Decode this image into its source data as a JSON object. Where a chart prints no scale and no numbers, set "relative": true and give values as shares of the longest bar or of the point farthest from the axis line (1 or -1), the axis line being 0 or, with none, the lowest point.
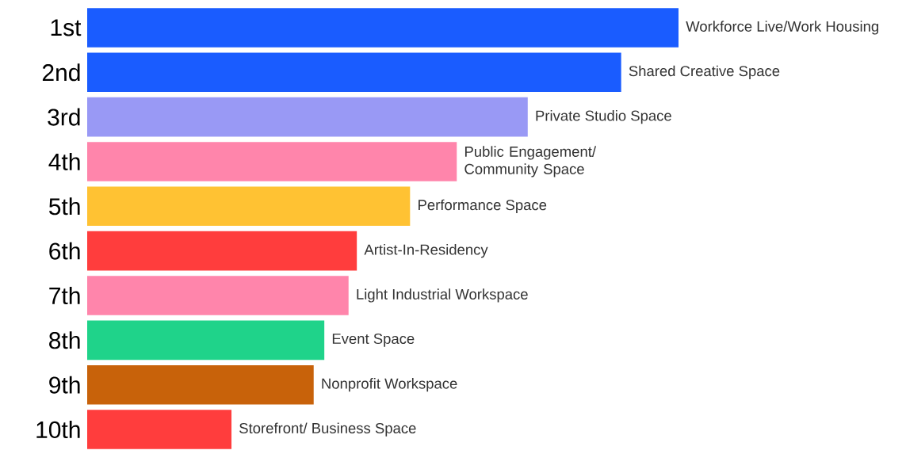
{
  "chart_data": {
    "type": "bar",
    "orientation": "horizontal",
    "relative": true,
    "categories": [
      "1st",
      "2nd",
      "3rd",
      "4th",
      "5th",
      "6th",
      "7th",
      "8th",
      "9th",
      "10th"
    ],
    "values": [
      1,
      0.903,
      0.745,
      0.625,
      0.546,
      0.456,
      0.442,
      0.401,
      0.383,
      0.244
    ],
    "colors": [
      "#1a5cff",
      "#1a5cff",
      "#9999f5",
      "#ff85ab",
      "#ffc233",
      "#ff3d3d",
      "#ff85ab",
      "#1fd38a",
      "#c8620a",
      "#ff3d3d"
    ],
    "annotations": [
      {
        "text": "Workforce Live/Work Housing",
        "x": 1,
        "y": "1st"
      },
      {
        "text": "Shared Creative Space",
        "x": 0.903,
        "y": "2nd"
      },
      {
        "text": "Private Studio Space",
        "x": 0.745,
        "y": "3rd"
      },
      {
        "text": "Public Engagement/ Community Space",
        "x": 0.625,
        "y": "4th"
      },
      {
        "text": "Performance Space",
        "x": 0.546,
        "y": "5th"
      },
      {
        "text": "Artist-In-Residency",
        "x": 0.456,
        "y": "6th"
      },
      {
        "text": "Light Industrial Workspace",
        "x": 0.442,
        "y": "7th"
      },
      {
        "text": "Event Space",
        "x": 0.401,
        "y": "8th"
      },
      {
        "text": "Nonprofit Workspace",
        "x": 0.383,
        "y": "9th"
      },
      {
        "text": "Storefront/ Business Space",
        "x": 0.244,
        "y": "10th"
      }
    ]
  }
}
